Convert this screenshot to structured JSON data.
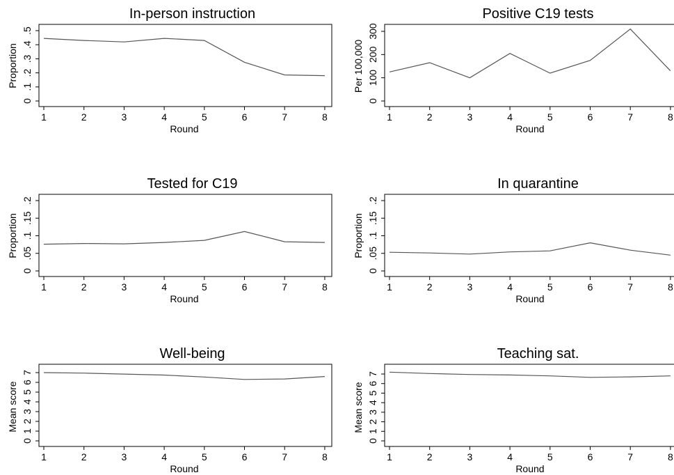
{
  "chart_data": [
    {
      "type": "line",
      "title": "In-person instruction",
      "xlabel": "Round",
      "ylabel": "Proportion",
      "x": [
        1,
        2,
        3,
        4,
        5,
        6,
        7,
        8
      ],
      "series": [
        {
          "values": [
            0.445,
            0.43,
            0.42,
            0.445,
            0.43,
            0.275,
            0.185,
            0.18
          ]
        }
      ],
      "ylim": [
        0,
        0.5
      ],
      "yticks": [
        0,
        0.1,
        0.2,
        0.3,
        0.4,
        0.5
      ],
      "ytick_labels": [
        "0",
        ".1",
        ".2",
        ".3",
        ".4",
        ".5"
      ],
      "xtick_labels": [
        "1",
        "2",
        "3",
        "4",
        "5",
        "6",
        "7",
        "8"
      ],
      "grid": false
    },
    {
      "type": "line",
      "title": "Positive C19 tests",
      "xlabel": "Round",
      "ylabel": "Per 100,000",
      "x": [
        1,
        2,
        3,
        4,
        5,
        6,
        7,
        8
      ],
      "series": [
        {
          "values": [
            125,
            165,
            100,
            205,
            120,
            175,
            310,
            130
          ]
        }
      ],
      "ylim": [
        0,
        300
      ],
      "yticks": [
        0,
        100,
        200,
        300
      ],
      "ytick_labels": [
        "0",
        "100",
        "200",
        "300"
      ],
      "xtick_labels": [
        "1",
        "2",
        "3",
        "4",
        "5",
        "6",
        "7",
        "8"
      ],
      "grid": false
    },
    {
      "type": "line",
      "title": "Tested for C19",
      "xlabel": "Round",
      "ylabel": "Proportion",
      "x": [
        1,
        2,
        3,
        4,
        5,
        6,
        7,
        8
      ],
      "series": [
        {
          "values": [
            0.076,
            0.078,
            0.077,
            0.081,
            0.087,
            0.112,
            0.083,
            0.081
          ]
        }
      ],
      "ylim": [
        0,
        0.2
      ],
      "yticks": [
        0,
        0.05,
        0.1,
        0.15,
        0.2
      ],
      "ytick_labels": [
        "0",
        ".05",
        ".1",
        ".15",
        ".2"
      ],
      "xtick_labels": [
        "1",
        "2",
        "3",
        "4",
        "5",
        "6",
        "7",
        "8"
      ],
      "grid": false
    },
    {
      "type": "line",
      "title": "In quarantine",
      "xlabel": "Round",
      "ylabel": "Proportion",
      "x": [
        1,
        2,
        3,
        4,
        5,
        6,
        7,
        8
      ],
      "series": [
        {
          "values": [
            0.053,
            0.051,
            0.048,
            0.054,
            0.057,
            0.08,
            0.059,
            0.045
          ]
        }
      ],
      "ylim": [
        0,
        0.2
      ],
      "yticks": [
        0,
        0.05,
        0.1,
        0.15,
        0.2
      ],
      "ytick_labels": [
        "0",
        ".05",
        ".1",
        ".15",
        ".2"
      ],
      "xtick_labels": [
        "1",
        "2",
        "3",
        "4",
        "5",
        "6",
        "7",
        "8"
      ],
      "grid": false
    },
    {
      "type": "line",
      "title": "Well-being",
      "xlabel": "Round",
      "ylabel": "Mean score",
      "x": [
        1,
        2,
        3,
        4,
        5,
        6,
        7,
        8
      ],
      "series": [
        {
          "values": [
            7.0,
            6.95,
            6.85,
            6.75,
            6.55,
            6.3,
            6.35,
            6.6
          ]
        }
      ],
      "ylim": [
        0,
        7
      ],
      "yticks": [
        0,
        1,
        2,
        3,
        4,
        5,
        6,
        7
      ],
      "ytick_labels": [
        "0",
        "1",
        "2",
        "3",
        "4",
        "5",
        "6",
        "7"
      ],
      "xtick_labels": [
        "1",
        "2",
        "3",
        "4",
        "5",
        "6",
        "7",
        "8"
      ],
      "grid": false
    },
    {
      "type": "line",
      "title": "Teaching sat.",
      "xlabel": "Round",
      "ylabel": "Mean score",
      "x": [
        1,
        2,
        3,
        4,
        5,
        6,
        7,
        8
      ],
      "series": [
        {
          "values": [
            7.2,
            7.05,
            6.95,
            6.9,
            6.8,
            6.65,
            6.7,
            6.8
          ]
        }
      ],
      "ylim": [
        0,
        7
      ],
      "yticks": [
        0,
        1,
        2,
        3,
        4,
        5,
        6,
        7
      ],
      "ytick_labels": [
        "0",
        "1",
        "2",
        "3",
        "4",
        "5",
        "6",
        "7"
      ],
      "xtick_labels": [
        "1",
        "2",
        "3",
        "4",
        "5",
        "6",
        "7",
        "8"
      ],
      "grid": false
    }
  ]
}
